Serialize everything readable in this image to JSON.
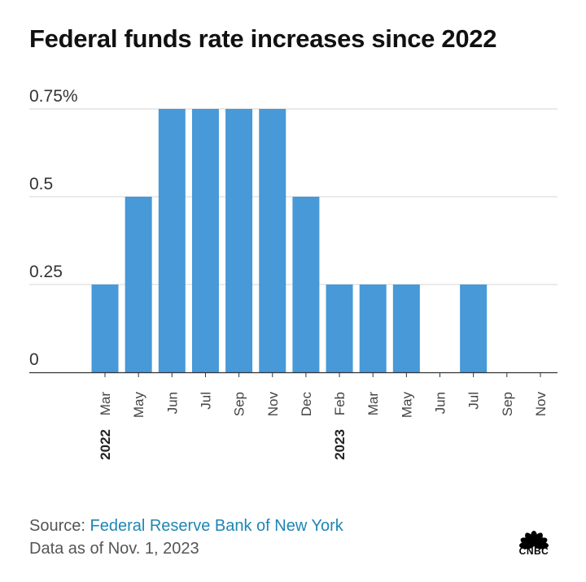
{
  "title": "Federal funds rate increases since 2022",
  "source": {
    "prefix": "Source: ",
    "name": "Federal Reserve Bank of New York"
  },
  "as_of": "Data as of Nov. 1, 2023",
  "logo": {
    "text": "CNBC",
    "icon": "peacock-icon"
  },
  "chart_data": {
    "type": "bar",
    "title": "Federal funds rate increases since 2022",
    "xlabel": "",
    "ylabel": "",
    "categories": [
      "Mar",
      "May",
      "Jun",
      "Jul",
      "Sep",
      "Nov",
      "Dec",
      "Feb",
      "Mar",
      "May",
      "Jun",
      "Jul",
      "Sep",
      "Nov"
    ],
    "year_labels": [
      {
        "category_index": 0,
        "label": "2022"
      },
      {
        "category_index": 7,
        "label": "2023"
      }
    ],
    "values": [
      0.25,
      0.5,
      0.75,
      0.75,
      0.75,
      0.75,
      0.5,
      0.25,
      0.25,
      0.25,
      0,
      0.25,
      0,
      0
    ],
    "ylim": [
      0,
      0.75
    ],
    "yticks": [
      0,
      0.25,
      0.5,
      0.75
    ],
    "ytick_labels": [
      "0",
      "0.25",
      "0.5",
      "0.75%"
    ],
    "grid": true,
    "bar_color": "#4799d8",
    "grid_color": "#d6d6d6"
  }
}
